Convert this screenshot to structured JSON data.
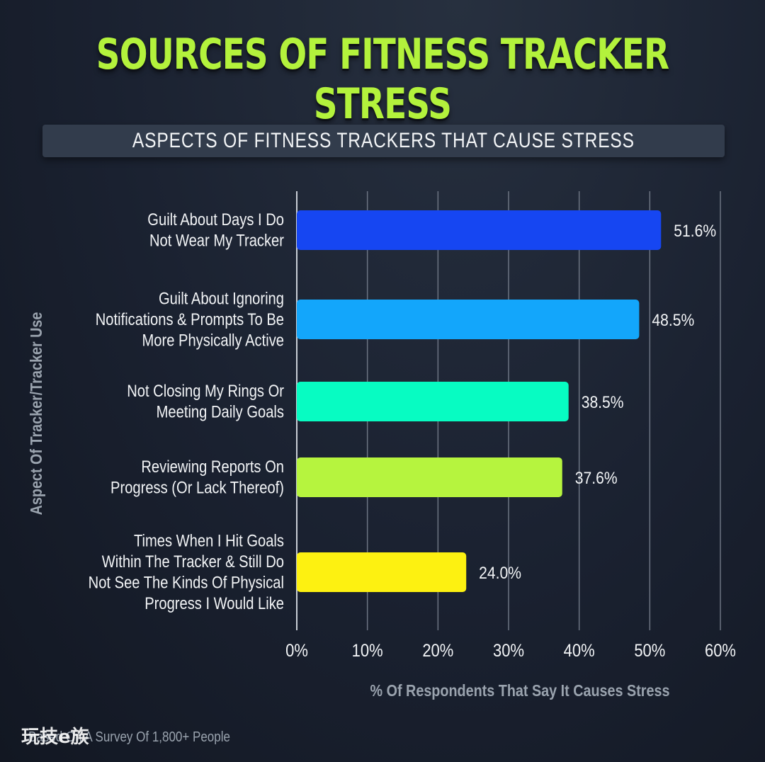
{
  "title": "SOURCES OF FITNESS TRACKER STRESS",
  "subtitle": "ASPECTS OF FITNESS TRACKERS THAT CAUSE STRESS",
  "footnote": "Based On A Survey Of 1,800+ People",
  "watermark": "玩技e族",
  "colors": {
    "background": "#1a2130",
    "title": "#b3f23c",
    "grid": "#8e96a2",
    "text": "#f2f4f6",
    "axis_title": "#9aa3ae"
  },
  "chart_data": {
    "type": "bar",
    "orientation": "horizontal",
    "categories": [
      [
        "Guilt About Days I Do",
        "Not Wear My Tracker"
      ],
      [
        "Guilt About Ignoring",
        "Notifications & Prompts To Be",
        "More Physically Active"
      ],
      [
        "Not Closing My Rings Or",
        "Meeting Daily Goals"
      ],
      [
        "Reviewing Reports On",
        "Progress (Or Lack Thereof)"
      ],
      [
        "Times When I Hit Goals",
        "Within The Tracker & Still Do",
        "Not See The Kinds Of Physical",
        "Progress I Would Like"
      ]
    ],
    "values": [
      51.6,
      48.5,
      38.5,
      37.6,
      24.0
    ],
    "value_labels": [
      "51.6%",
      "48.5%",
      "38.5%",
      "37.6%",
      "24.0%"
    ],
    "bar_colors": [
      "#1646f2",
      "#13a6fb",
      "#07fcc2",
      "#b6f43e",
      "#fdf111"
    ],
    "xlim": [
      0,
      60
    ],
    "xticks": [
      0,
      10,
      20,
      30,
      40,
      50,
      60
    ],
    "xtick_labels": [
      "0%",
      "10%",
      "20%",
      "30%",
      "40%",
      "50%",
      "60%"
    ],
    "xlabel": "% Of Respondents That Say It Causes Stress",
    "ylabel": "Aspect Of Tracker/Tracker Use",
    "grid": "vertical",
    "legend": "none"
  }
}
